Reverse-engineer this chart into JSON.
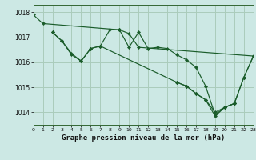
{
  "title": "Graphe pression niveau de la mer (hPa)",
  "background_color": "#cce8e4",
  "grid_color": "#aaccbb",
  "line_color": "#1a5c2a",
  "xlim": [
    0,
    23
  ],
  "ylim": [
    1013.5,
    1018.3
  ],
  "yticks": [
    1014,
    1015,
    1016,
    1017,
    1018
  ],
  "xticks": [
    0,
    1,
    2,
    3,
    4,
    5,
    6,
    7,
    8,
    9,
    10,
    11,
    12,
    13,
    14,
    15,
    16,
    17,
    18,
    19,
    20,
    21,
    22,
    23
  ],
  "lines": [
    {
      "x": [
        0,
        1,
        9,
        10,
        11,
        23
      ],
      "y": [
        1017.9,
        1017.55,
        1017.3,
        1017.15,
        1016.6,
        1016.25
      ]
    },
    {
      "x": [
        2,
        3,
        4,
        5,
        6,
        7,
        8,
        9,
        10,
        11,
        12,
        13,
        14,
        15,
        16,
        17,
        18,
        19,
        20,
        21
      ],
      "y": [
        1017.2,
        1016.85,
        1016.3,
        1016.05,
        1016.55,
        1016.65,
        1017.3,
        1017.3,
        1016.6,
        1017.2,
        1016.55,
        1016.6,
        1016.55,
        1016.3,
        1016.1,
        1015.8,
        1015.05,
        1013.9,
        1014.2,
        1014.35
      ]
    },
    {
      "x": [
        2,
        3,
        4,
        5,
        6,
        7,
        15,
        16,
        17,
        18,
        19,
        20,
        21,
        22,
        23
      ],
      "y": [
        1017.2,
        1016.85,
        1016.35,
        1016.05,
        1016.55,
        1016.65,
        1015.2,
        1015.05,
        1014.75,
        1014.5,
        1014.0,
        1014.2,
        1014.35,
        1015.4,
        1016.25
      ]
    },
    {
      "x": [
        15,
        16,
        17,
        18,
        19,
        20,
        21,
        22,
        23
      ],
      "y": [
        1015.2,
        1015.05,
        1014.75,
        1014.5,
        1013.85,
        1014.2,
        1014.35,
        1015.4,
        1016.25
      ]
    }
  ]
}
